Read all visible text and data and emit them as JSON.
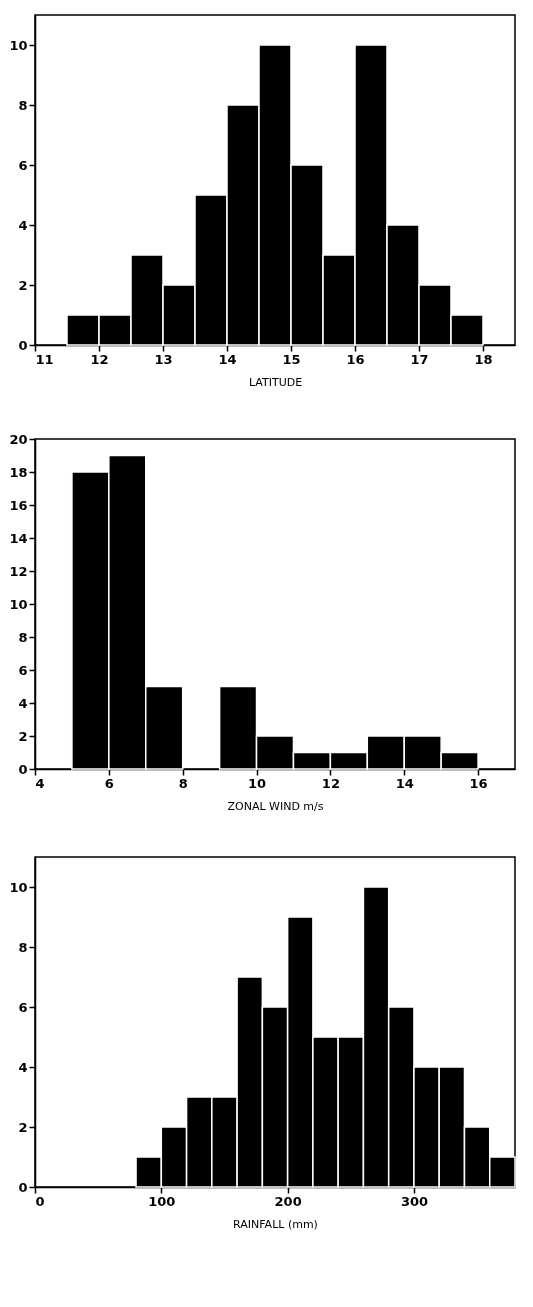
{
  "chart_data": [
    {
      "type": "histogram",
      "xlabel": "LATITUDE",
      "bins": [
        11.5,
        12,
        12.5,
        13,
        13.5,
        14,
        14.5,
        15,
        15.5,
        16,
        16.5,
        17,
        17.5,
        18
      ],
      "values": [
        1,
        1,
        3,
        2,
        5,
        8,
        10,
        6,
        3,
        10,
        4,
        2,
        1
      ],
      "color": "#000000",
      "xlim": [
        11,
        18.5
      ],
      "xticks": [
        11,
        12,
        13,
        14,
        15,
        16,
        17,
        18
      ],
      "ylim": [
        0,
        11
      ],
      "yticks": [
        0,
        2,
        4,
        6,
        8,
        10
      ],
      "grid": false
    },
    {
      "type": "histogram",
      "xlabel": "ZONAL WIND  m/s",
      "bins": [
        5,
        6,
        7,
        8,
        9,
        10,
        11,
        12,
        13,
        14,
        15,
        16
      ],
      "values": [
        18,
        19,
        5,
        0,
        5,
        2,
        1,
        1,
        2,
        2,
        1
      ],
      "color": "#000000",
      "xlim": [
        4,
        17
      ],
      "xticks": [
        4,
        6,
        8,
        10,
        12,
        14,
        16
      ],
      "ylim": [
        0,
        20
      ],
      "yticks": [
        0,
        2,
        4,
        6,
        8,
        10,
        12,
        14,
        16,
        18,
        20
      ],
      "grid": false
    },
    {
      "type": "histogram",
      "xlabel": "RAINFALL (mm)",
      "bins": [
        80,
        100,
        120,
        140,
        160,
        180,
        200,
        220,
        240,
        260,
        280,
        300,
        320,
        340,
        360,
        380
      ],
      "values": [
        1,
        2,
        3,
        3,
        7,
        6,
        9,
        5,
        5,
        10,
        6,
        4,
        4,
        2,
        1
      ],
      "color": "#000000",
      "xlim": [
        0,
        380
      ],
      "xticks": [
        0,
        100,
        200,
        300
      ],
      "ylim": [
        0,
        11
      ],
      "yticks": [
        0,
        2,
        4,
        6,
        8,
        10
      ],
      "grid": false
    }
  ]
}
